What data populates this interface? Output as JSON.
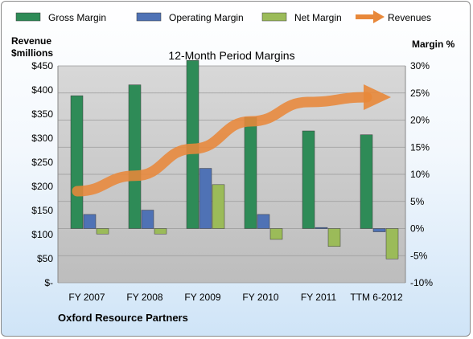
{
  "chart_data": {
    "type": "bar",
    "title": "12-Month Period Margins",
    "categories": [
      "FY 2007",
      "FY 2008",
      "FY 2009",
      "FY 2010",
      "FY 2011",
      "TTM 6-2012"
    ],
    "series": [
      {
        "name": "Gross Margin",
        "axis": "right",
        "kind": "bar",
        "color": "#2e8b57",
        "values": [
          24.5,
          26.5,
          31.0,
          20.5,
          18.0,
          17.3
        ]
      },
      {
        "name": "Operating Margin",
        "axis": "right",
        "kind": "bar",
        "color": "#4f72b5",
        "values": [
          2.6,
          3.4,
          11.1,
          2.6,
          0.2,
          -0.6
        ]
      },
      {
        "name": "Net Margin",
        "axis": "right",
        "kind": "bar",
        "color": "#9bbb59",
        "values": [
          -1.0,
          -1.0,
          8.1,
          -2.0,
          -3.3,
          -5.6
        ]
      },
      {
        "name": "Revenues",
        "axis": "left",
        "kind": "line",
        "color": "#e8883a",
        "values": [
          190,
          222,
          278,
          335,
          375,
          385
        ]
      }
    ],
    "y_left": {
      "label_line1": "Revenue",
      "label_line2": "$millions",
      "min": 0,
      "max": 450,
      "step": 50,
      "ticks": [
        "$-",
        "$50",
        "$100",
        "$150",
        "$200",
        "$250",
        "$300",
        "$350",
        "$400",
        "$450"
      ]
    },
    "y_right": {
      "label": "Margin %",
      "min": -10,
      "max": 30,
      "step": 5,
      "ticks": [
        "-10%",
        "-5%",
        "0%",
        "5%",
        "10%",
        "15%",
        "20%",
        "25%",
        "30%"
      ]
    },
    "grid": true,
    "legend_position": "top",
    "footer": "Oxford Resource Partners",
    "plot_background": "#cdcdcd"
  }
}
